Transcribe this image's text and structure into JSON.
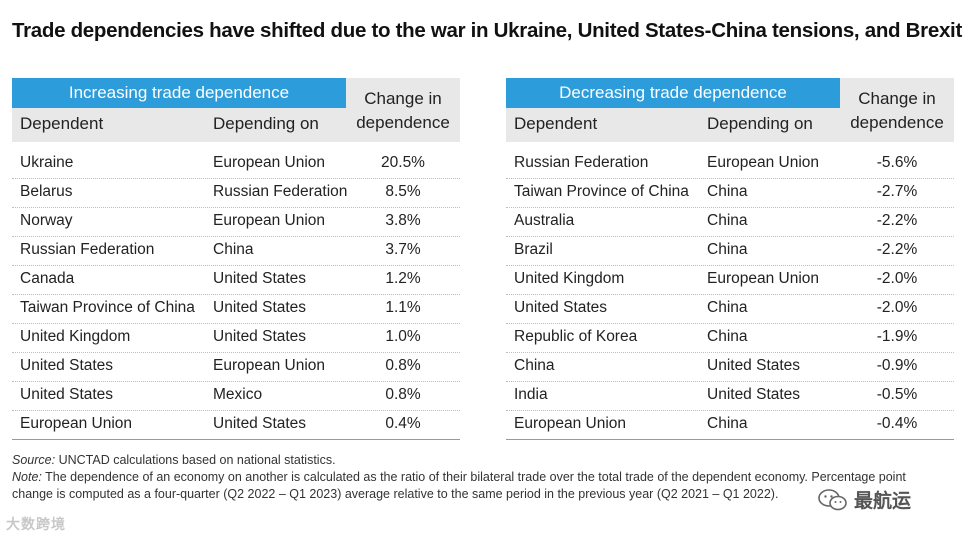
{
  "title": "Trade dependencies have shifted due to the war in Ukraine, United States-China tensions, and Brexit",
  "headers": {
    "increasing": "Increasing trade dependence",
    "decreasing": "Decreasing trade dependence",
    "dependent": "Dependent",
    "depending_on": "Depending on",
    "change_line1": "Change in",
    "change_line2": "dependence"
  },
  "increasing": [
    {
      "dependent": "Ukraine",
      "on": "European Union",
      "change": "20.5%"
    },
    {
      "dependent": "Belarus",
      "on": "Russian Federation",
      "change": "8.5%"
    },
    {
      "dependent": "Norway",
      "on": "European Union",
      "change": "3.8%"
    },
    {
      "dependent": "Russian Federation",
      "on": "China",
      "change": "3.7%"
    },
    {
      "dependent": "Canada",
      "on": "United States",
      "change": "1.2%"
    },
    {
      "dependent": "Taiwan Province of China",
      "on": "United States",
      "change": "1.1%"
    },
    {
      "dependent": "United Kingdom",
      "on": "United States",
      "change": "1.0%"
    },
    {
      "dependent": "United States",
      "on": "European Union",
      "change": "0.8%"
    },
    {
      "dependent": "United States",
      "on": "Mexico",
      "change": "0.8%"
    },
    {
      "dependent": "European Union",
      "on": "United States",
      "change": "0.4%"
    }
  ],
  "decreasing": [
    {
      "dependent": "Russian Federation",
      "on": "European Union",
      "change": "-5.6%"
    },
    {
      "dependent": "Taiwan Province of China",
      "on": "China",
      "change": "-2.7%"
    },
    {
      "dependent": "Australia",
      "on": "China",
      "change": "-2.2%"
    },
    {
      "dependent": "Brazil",
      "on": "China",
      "change": "-2.2%"
    },
    {
      "dependent": "United Kingdom",
      "on": "European Union",
      "change": "-2.0%"
    },
    {
      "dependent": "United States",
      "on": "China",
      "change": "-2.0%"
    },
    {
      "dependent": "Republic of Korea",
      "on": "China",
      "change": "-1.9%"
    },
    {
      "dependent": "China",
      "on": "United States",
      "change": "-0.9%"
    },
    {
      "dependent": "India",
      "on": "United States",
      "change": "-0.5%"
    },
    {
      "dependent": "European Union",
      "on": "China",
      "change": "-0.4%"
    }
  ],
  "footer": {
    "source_label": "Source:",
    "source_text": " UNCTAD calculations based on national statistics.",
    "note_label": "Note:",
    "note_text": " The dependence of an economy on another is calculated as the ratio of their bilateral trade over the total trade of the dependent economy. Percentage point",
    "note_line2": "change is computed as a four-quarter (Q2 2022 – Q1 2023) average relative to the same period in the previous year (Q2 2021 – Q1 2022)."
  },
  "watermarks": {
    "left": "大数跨境",
    "right": "最航运",
    "right_icon": "wechat-icon"
  },
  "colors": {
    "accent": "#2d9cdb",
    "header_bg": "#e8e8e8"
  }
}
